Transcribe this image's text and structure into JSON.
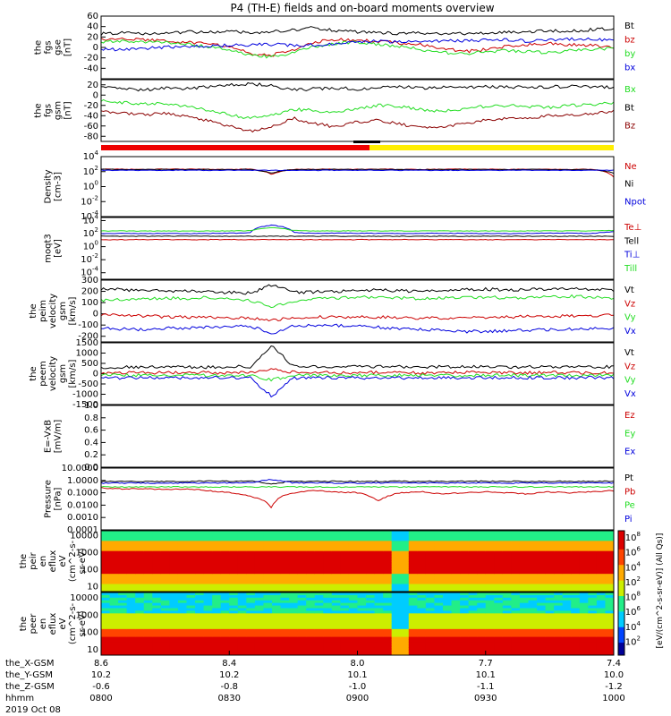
{
  "title": "P4 (TH-E) fields and on-board moments overview",
  "colors": {
    "black": "#000000",
    "red": "#cc0000",
    "green": "#22dd22",
    "blue": "#0000dd",
    "darkred": "#8b0000",
    "yellow": "#ffee00"
  },
  "chart_data": [
    {
      "type": "line",
      "id": "fgs_gse",
      "ylabel": [
        "the",
        "fgs",
        "gse",
        "[nT]"
      ],
      "ylim": [
        -60,
        60
      ],
      "yticks": [
        "60",
        "40",
        "20",
        "0",
        "-20",
        "-40"
      ],
      "series": [
        {
          "name": "Bt",
          "color": "#000000",
          "values": [
            26,
            28,
            25,
            27,
            30,
            29,
            31,
            28,
            30,
            33,
            38,
            32,
            30,
            28,
            27,
            28,
            26,
            27,
            28,
            29,
            30,
            32,
            31,
            34,
            36
          ]
        },
        {
          "name": "bz",
          "color": "#cc0000",
          "values": [
            15,
            16,
            14,
            13,
            10,
            8,
            2,
            -12,
            -15,
            -4,
            10,
            15,
            14,
            12,
            8,
            5,
            -2,
            -8,
            -4,
            2,
            6,
            8,
            5,
            4,
            -2
          ]
        },
        {
          "name": "by",
          "color": "#22dd22",
          "values": [
            10,
            12,
            11,
            9,
            6,
            2,
            -6,
            -15,
            -18,
            -10,
            2,
            8,
            10,
            6,
            2,
            -4,
            -10,
            -12,
            -8,
            -6,
            -8,
            -10,
            -6,
            -4,
            -2
          ]
        },
        {
          "name": "bx",
          "color": "#0000dd",
          "values": [
            -3,
            -4,
            -2,
            0,
            2,
            3,
            4,
            5,
            6,
            4,
            5,
            8,
            10,
            12,
            11,
            10,
            12,
            13,
            14,
            15,
            12,
            14,
            16,
            15,
            14
          ]
        }
      ]
    },
    {
      "type": "line",
      "id": "fgs_gsm",
      "ylabel": [
        "the",
        "fgs",
        "gsm",
        "[nT]"
      ],
      "ylim": [
        -90,
        30
      ],
      "yticks": [
        "20",
        "0",
        "-20",
        "-40",
        "-60",
        "-80"
      ],
      "series": [
        {
          "name": "Bx",
          "color": "#22dd22",
          "values": [
            -10,
            -14,
            -18,
            -16,
            -22,
            -30,
            -38,
            -45,
            -40,
            -28,
            -30,
            -35,
            -25,
            -20,
            -22,
            -28,
            -32,
            -26,
            -22,
            -20,
            -22,
            -24,
            -20,
            -18,
            -16
          ]
        },
        {
          "name": "Bt",
          "color": "#000000",
          "values": [
            15,
            12,
            10,
            14,
            12,
            16,
            20,
            22,
            18,
            10,
            12,
            14,
            12,
            15,
            16,
            14,
            15,
            14,
            16,
            16,
            15,
            16,
            17,
            16,
            15
          ]
        },
        {
          "name": "Bz",
          "color": "#8b0000",
          "values": [
            -30,
            -35,
            -38,
            -36,
            -40,
            -50,
            -60,
            -70,
            -62,
            -45,
            -55,
            -62,
            -52,
            -48,
            -56,
            -64,
            -62,
            -55,
            -48,
            -45,
            -44,
            -40,
            -38,
            -36,
            -32
          ]
        }
      ]
    },
    {
      "type": "line",
      "id": "density",
      "ylabel": [
        "Density",
        "[cm-3]"
      ],
      "scale": "log",
      "ylim": [
        0.0001,
        10000
      ],
      "yticks": [
        "10^4",
        "10^2",
        "10^0",
        "10^-2",
        "10^-4"
      ],
      "series": [
        {
          "name": "Ne",
          "color": "#cc0000",
          "values": [
            220,
            210,
            200,
            215,
            210,
            205,
            200,
            210,
            40,
            200,
            205,
            210,
            200,
            210,
            205,
            200,
            205,
            210,
            205,
            200,
            210,
            205,
            200,
            205,
            20
          ]
        },
        {
          "name": "Ni",
          "color": "#000000",
          "values": [
            200,
            195,
            190,
            200,
            195,
            190,
            185,
            195,
            60,
            190,
            195,
            200,
            190,
            195,
            190,
            185,
            190,
            195,
            190,
            185,
            195,
            190,
            185,
            190,
            60
          ]
        },
        {
          "name": "Npot",
          "color": "#0000dd",
          "values": [
            150,
            150,
            150,
            150,
            150,
            150,
            150,
            150,
            150,
            150,
            150,
            150,
            150,
            150,
            150,
            150,
            150,
            150,
            150,
            150,
            150,
            150,
            150,
            150,
            150
          ]
        }
      ]
    },
    {
      "type": "line",
      "id": "temperature",
      "ylabel": [
        "moqt3",
        "[eV]"
      ],
      "scale": "log",
      "ylim": [
        1e-05,
        30000
      ],
      "yticks": [
        "10^4",
        "10^2",
        "10^0",
        "10^-2",
        "10^-4"
      ],
      "series": [
        {
          "name": "Te⊥",
          "color": "#cc0000",
          "values": [
            12,
            12,
            12,
            12,
            12,
            12,
            12,
            12,
            12,
            12,
            12,
            12,
            12,
            12,
            12,
            12,
            12,
            12,
            12,
            12,
            12,
            12,
            12,
            12,
            12
          ]
        },
        {
          "name": "Tell",
          "color": "#000000",
          "values": [
            40,
            40,
            40,
            40,
            40,
            40,
            40,
            40,
            40,
            40,
            40,
            40,
            40,
            40,
            40,
            40,
            40,
            40,
            40,
            40,
            40,
            40,
            40,
            40,
            40
          ]
        },
        {
          "name": "Ti⊥",
          "color": "#0000dd",
          "values": [
            100,
            110,
            100,
            105,
            100,
            110,
            120,
            130,
            2000,
            150,
            110,
            120,
            115,
            110,
            105,
            110,
            115,
            110,
            105,
            100,
            110,
            120,
            115,
            110,
            200
          ]
        },
        {
          "name": "Till",
          "color": "#22dd22",
          "values": [
            250,
            260,
            250,
            255,
            260,
            250,
            260,
            280,
            900,
            300,
            260,
            270,
            265,
            260,
            255,
            260,
            265,
            260,
            255,
            250,
            260,
            270,
            265,
            260,
            300
          ]
        }
      ]
    },
    {
      "type": "line",
      "id": "peim",
      "ylabel": [
        "the",
        "peim",
        "velocity",
        "gsm",
        "[km/s]"
      ],
      "ylim": [
        -250,
        300
      ],
      "yticks": [
        "300",
        "200",
        "100",
        "0",
        "-100",
        "-200"
      ],
      "series": [
        {
          "name": "Vt",
          "color": "#000000",
          "values": [
            220,
            215,
            210,
            205,
            200,
            195,
            190,
            185,
            260,
            190,
            195,
            200,
            205,
            210,
            205,
            200,
            210,
            215,
            220,
            210,
            215,
            220,
            225,
            215,
            210
          ]
        },
        {
          "name": "Vz",
          "color": "#cc0000",
          "values": [
            -10,
            -15,
            -20,
            -25,
            -30,
            -28,
            -35,
            -40,
            -60,
            -35,
            -30,
            -28,
            -25,
            -30,
            -35,
            -40,
            -38,
            -35,
            -30,
            -28,
            -25,
            -22,
            -20,
            -18,
            -15
          ]
        },
        {
          "name": "Vy",
          "color": "#22dd22",
          "values": [
            120,
            125,
            130,
            140,
            135,
            145,
            140,
            120,
            60,
            110,
            130,
            140,
            145,
            150,
            140,
            135,
            140,
            145,
            150,
            140,
            145,
            150,
            155,
            150,
            140
          ]
        },
        {
          "name": "Vx",
          "color": "#0000dd",
          "values": [
            -130,
            -135,
            -140,
            -130,
            -125,
            -120,
            -115,
            -110,
            -180,
            -110,
            -100,
            -105,
            -110,
            -120,
            -130,
            -140,
            -150,
            -160,
            -155,
            -150,
            -145,
            -140,
            -135,
            -130,
            -125
          ]
        }
      ]
    },
    {
      "type": "line",
      "id": "peem",
      "ylabel": [
        "the",
        "peem",
        "velocity",
        "gsm",
        "[km/s]"
      ],
      "ylim": [
        -1500,
        1500
      ],
      "yticks": [
        "1500",
        "1000",
        "500",
        "0",
        "-500",
        "-1000",
        "-1500"
      ],
      "series": [
        {
          "name": "Vt",
          "color": "#000000",
          "values": [
            300,
            320,
            310,
            330,
            320,
            310,
            330,
            340,
            1400,
            350,
            330,
            320,
            330,
            340,
            330,
            320,
            330,
            340,
            330,
            320,
            330,
            340,
            330,
            320,
            330
          ]
        },
        {
          "name": "Vz",
          "color": "#cc0000",
          "values": [
            50,
            60,
            40,
            50,
            60,
            50,
            40,
            60,
            200,
            60,
            50,
            40,
            50,
            60,
            50,
            40,
            50,
            60,
            50,
            40,
            50,
            60,
            50,
            40,
            50
          ]
        },
        {
          "name": "Vy",
          "color": "#22dd22",
          "values": [
            -80,
            -70,
            -90,
            -80,
            -70,
            -90,
            -80,
            -100,
            -300,
            -90,
            -80,
            -70,
            -80,
            -90,
            -80,
            -70,
            -80,
            -90,
            -80,
            -70,
            -80,
            -90,
            -80,
            -70,
            -80
          ]
        },
        {
          "name": "Vx",
          "color": "#0000dd",
          "values": [
            -200,
            -210,
            -190,
            -200,
            -210,
            -190,
            -200,
            -220,
            -1100,
            -210,
            -200,
            -190,
            -200,
            -210,
            -200,
            -190,
            -200,
            -210,
            -200,
            -190,
            -200,
            -210,
            -200,
            -190,
            -200
          ]
        }
      ]
    },
    {
      "type": "line",
      "id": "efield",
      "ylabel": [
        "E=-VxB",
        "[mV/m]"
      ],
      "ylim": [
        0,
        1
      ],
      "yticks": [
        "1.0",
        "0.8",
        "0.6",
        "0.4",
        "0.2",
        "0.0"
      ],
      "series": [
        {
          "name": "Ez",
          "color": "#cc0000",
          "values": []
        },
        {
          "name": "Ey",
          "color": "#22dd22",
          "values": []
        },
        {
          "name": "Ex",
          "color": "#0000dd",
          "values": []
        }
      ]
    },
    {
      "type": "line",
      "id": "pressure",
      "ylabel": [
        "Pressure",
        "[nPa]"
      ],
      "scale": "log",
      "ylim": [
        0.0001,
        10
      ],
      "yticks": [
        "10.0000",
        "1.0000",
        "0.1000",
        "0.0100",
        "0.0010",
        "0.0001"
      ],
      "series": [
        {
          "name": "Pt",
          "color": "#000000",
          "values": [
            0.8,
            0.85,
            0.8,
            0.82,
            0.85,
            0.9,
            0.88,
            0.9,
            0.5,
            0.88,
            0.86,
            0.85,
            0.84,
            0.86,
            0.85,
            0.84,
            0.85,
            0.86,
            0.85,
            0.84,
            0.85,
            0.86,
            0.85,
            0.84,
            0.85
          ]
        },
        {
          "name": "Pb",
          "color": "#cc0000",
          "values": [
            0.25,
            0.2,
            0.22,
            0.18,
            0.2,
            0.15,
            0.1,
            0.05,
            0.005,
            0.1,
            0.15,
            0.12,
            0.1,
            0.02,
            0.1,
            0.12,
            0.08,
            0.1,
            0.12,
            0.1,
            0.08,
            0.12,
            0.1,
            0.12,
            0.15
          ]
        },
        {
          "name": "Pe",
          "color": "#22dd22",
          "values": [
            0.3,
            0.3,
            0.3,
            0.3,
            0.3,
            0.3,
            0.3,
            0.3,
            0.3,
            0.3,
            0.3,
            0.3,
            0.3,
            0.3,
            0.3,
            0.3,
            0.3,
            0.3,
            0.3,
            0.3,
            0.3,
            0.3,
            0.3,
            0.3,
            0.3
          ]
        },
        {
          "name": "Pi",
          "color": "#0000dd",
          "values": [
            0.6,
            0.62,
            0.6,
            0.61,
            0.62,
            0.63,
            0.64,
            0.65,
            1.2,
            0.64,
            0.63,
            0.62,
            0.63,
            0.64,
            0.63,
            0.62,
            0.63,
            0.64,
            0.63,
            0.62,
            0.63,
            0.64,
            0.63,
            0.62,
            0.63
          ]
        }
      ]
    },
    {
      "type": "heatmap",
      "id": "peir",
      "ylabel": [
        "the",
        "peir",
        "en",
        "eflux",
        "eV",
        "(cm^2-s-",
        "sr-eV)"
      ],
      "scale": "log",
      "ylim": [
        5,
        20000
      ],
      "yticks": [
        "10000",
        "1000",
        "100",
        "10"
      ]
    },
    {
      "type": "heatmap",
      "id": "peer",
      "ylabel": [
        "the",
        "peer",
        "en",
        "eflux",
        "eV",
        "(cm^2-s-",
        "sr-eV)"
      ],
      "scale": "log",
      "ylim": [
        5,
        20000
      ],
      "yticks": [
        "10000",
        "1000",
        "100",
        "10"
      ]
    }
  ],
  "colorbar": {
    "ticks": [
      "10^8",
      "10^6",
      "10^4",
      "10^2",
      "10^8",
      "10^6",
      "10^4",
      "10^2"
    ],
    "label": "[eV/(cm^2-s-sr-eV)] (All Qs)]",
    "label_upper": "[eV/(cm^2-s-sr-eV)] (All Qs)"
  },
  "xaxis": {
    "rows": [
      {
        "label": "the_X-GSM",
        "values": [
          "8.6",
          "8.4",
          "8.0",
          "7.7",
          "7.4"
        ]
      },
      {
        "label": "the_Y-GSM",
        "values": [
          "10.2",
          "10.2",
          "10.1",
          "10.1",
          "10.0"
        ]
      },
      {
        "label": "the_Z-GSM",
        "values": [
          "-0.6",
          "-0.8",
          "-1.0",
          "-1.1",
          "-1.2"
        ]
      },
      {
        "label": "hhmm",
        "values": [
          "0800",
          "0830",
          "0900",
          "0930",
          "1000"
        ]
      }
    ],
    "date": "2019 Oct 08"
  }
}
